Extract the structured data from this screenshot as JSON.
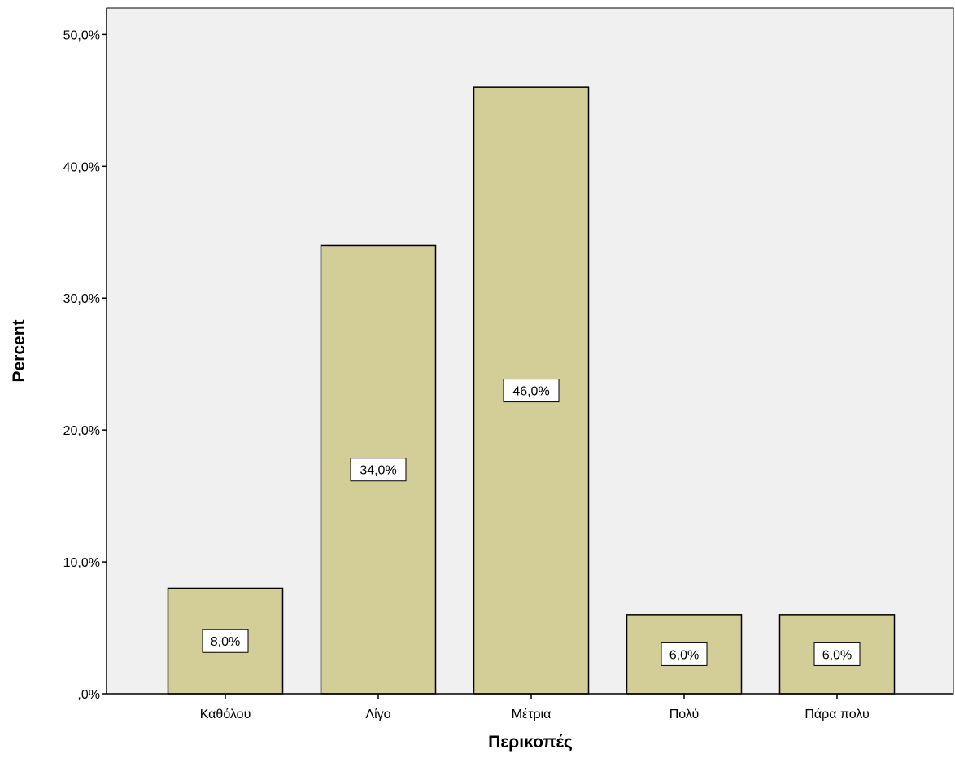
{
  "chart_data": {
    "type": "bar",
    "categories": [
      "Καθόλου",
      "Λίγο",
      "Μέτρια",
      "Πολύ",
      "Πάρα πολυ"
    ],
    "values": [
      8.0,
      34.0,
      46.0,
      6.0,
      6.0
    ],
    "data_labels": [
      "8,0%",
      "34,0%",
      "46,0%",
      "6,0%",
      "6,0%"
    ],
    "xlabel": "Περικοπές",
    "ylabel": "Percent",
    "ylim": [
      0,
      52
    ],
    "y_ticks": [
      {
        "value": 0,
        "label": ",0%"
      },
      {
        "value": 10,
        "label": "10,0%"
      },
      {
        "value": 20,
        "label": "20,0%"
      },
      {
        "value": 30,
        "label": "30,0%"
      },
      {
        "value": 40,
        "label": "40,0%"
      },
      {
        "value": 50,
        "label": "50,0%"
      }
    ],
    "grid": false,
    "legend": "none",
    "colors": {
      "plot_background": "#f0f0f0",
      "bar_fill": "#d3ce97",
      "bar_stroke": "#000000",
      "label_box": "#ffffff"
    }
  }
}
